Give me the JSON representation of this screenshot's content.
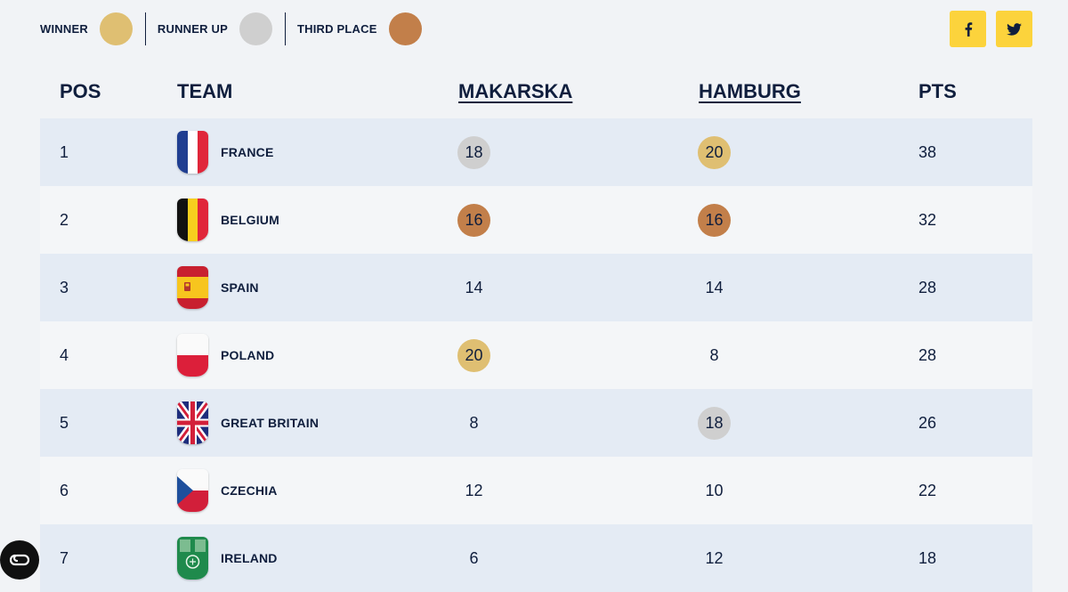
{
  "legend": [
    {
      "label": "WINNER",
      "color": "#dfbf72"
    },
    {
      "label": "RUNNER UP",
      "color": "#cfcfcf"
    },
    {
      "label": "THIRD PLACE",
      "color": "#c27f4a"
    }
  ],
  "social": [
    {
      "name": "facebook-icon",
      "glyph": "f"
    },
    {
      "name": "twitter-icon",
      "glyph": "bird"
    }
  ],
  "header": {
    "pos": "POS",
    "team": "TEAM",
    "makarska": "MAKARSKA",
    "hamburg": "HAMBURG",
    "pts": "PTS"
  },
  "rows": [
    {
      "pos": "1",
      "team": "FRANCE",
      "flag": "france",
      "makarska": {
        "value": "18",
        "medal": "silver"
      },
      "hamburg": {
        "value": "20",
        "medal": "gold"
      },
      "pts": "38"
    },
    {
      "pos": "2",
      "team": "BELGIUM",
      "flag": "belgium",
      "makarska": {
        "value": "16",
        "medal": "bronze"
      },
      "hamburg": {
        "value": "16",
        "medal": "bronze"
      },
      "pts": "32"
    },
    {
      "pos": "3",
      "team": "SPAIN",
      "flag": "spain",
      "makarska": {
        "value": "14",
        "medal": ""
      },
      "hamburg": {
        "value": "14",
        "medal": ""
      },
      "pts": "28"
    },
    {
      "pos": "4",
      "team": "POLAND",
      "flag": "poland",
      "makarska": {
        "value": "20",
        "medal": "gold"
      },
      "hamburg": {
        "value": "8",
        "medal": ""
      },
      "pts": "28"
    },
    {
      "pos": "5",
      "team": "GREAT BRITAIN",
      "flag": "great-britain",
      "makarska": {
        "value": "8",
        "medal": ""
      },
      "hamburg": {
        "value": "18",
        "medal": "silver"
      },
      "pts": "26"
    },
    {
      "pos": "6",
      "team": "CZECHIA",
      "flag": "czechia",
      "makarska": {
        "value": "12",
        "medal": ""
      },
      "hamburg": {
        "value": "10",
        "medal": ""
      },
      "pts": "22"
    },
    {
      "pos": "7",
      "team": "IRELAND",
      "flag": "ireland",
      "makarska": {
        "value": "6",
        "medal": ""
      },
      "hamburg": {
        "value": "12",
        "medal": ""
      },
      "pts": "18"
    }
  ],
  "medal_colors": {
    "gold": "#dfbf72",
    "silver": "#cfcfcf",
    "bronze": "#c27f4a"
  },
  "chat_button_icon": "chat-loop-icon"
}
